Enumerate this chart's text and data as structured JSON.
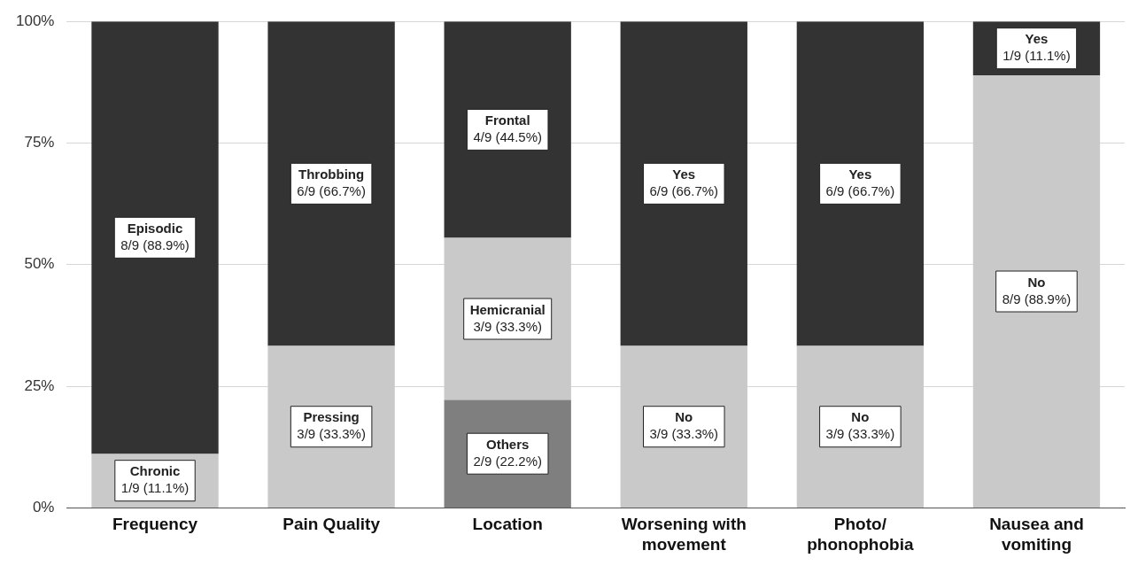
{
  "chart_data": {
    "type": "bar",
    "stacked": true,
    "categories": [
      "Frequency",
      "Pain Quality",
      "Location",
      "Worsening with movement",
      "Photo/ phonophobia",
      "Nausea and vomiting"
    ],
    "series": [
      {
        "colors": [
          "#c9c9c9",
          "#c9c9c9",
          "#7f7f7f",
          "#c9c9c9",
          "#c9c9c9",
          "#c9c9c9"
        ],
        "values": [
          11.1,
          33.3,
          22.2,
          33.3,
          33.3,
          88.9
        ],
        "value_labels": [
          "Chronic\n1/9 (11.1%)",
          "Pressing\n3/9 (33.3%)",
          "Others\n2/9 (22.2%)",
          "No\n3/9 (33.3%)",
          "No\n3/9 (33.3%)",
          "No\n8/9 (88.9%)"
        ]
      },
      {
        "color": "#c9c9c9",
        "values": [
          null,
          null,
          33.3,
          null,
          null,
          null
        ],
        "value_labels": [
          null,
          null,
          "Hemicranial\n3/9 (33.3%)",
          null,
          null,
          null
        ]
      },
      {
        "color": "#333333",
        "values": [
          88.9,
          66.7,
          44.5,
          66.7,
          66.7,
          11.1
        ],
        "value_labels": [
          "Episodic\n8/9 (88.9%)",
          "Throbbing\n6/9 (66.7%)",
          "Frontal\n4/9 (44.5%)",
          "Yes\n6/9 (66.7%)",
          "Yes\n6/9 (66.7%)",
          "Yes\n1/9 (11.1%)"
        ]
      }
    ],
    "ylim": [
      0,
      100
    ],
    "yticks": [
      {
        "value": 0,
        "label": "0%"
      },
      {
        "value": 25,
        "label": "25%"
      },
      {
        "value": 50,
        "label": "50%"
      },
      {
        "value": 75,
        "label": "75%"
      },
      {
        "value": 100,
        "label": "100%"
      }
    ],
    "grid": "y",
    "legend": false
  }
}
